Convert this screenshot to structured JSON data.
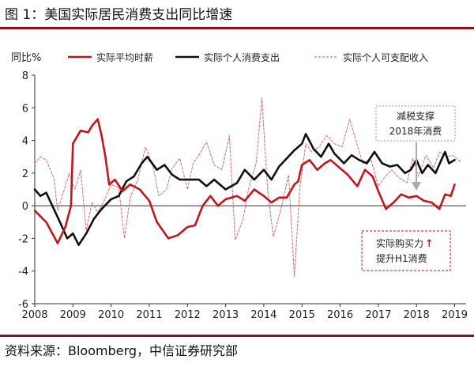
{
  "header": {
    "title": "图 1：美国实际居民消费支出同比增速"
  },
  "footer": {
    "source": "资料来源：Bloomberg，中信证券研究部"
  },
  "chart_data": {
    "type": "line",
    "ylabel": "同比%",
    "ylim": [
      -6,
      8
    ],
    "yticks": [
      -6,
      -4,
      -2,
      0,
      2,
      4,
      6,
      8
    ],
    "xlim": [
      2008,
      2019.3
    ],
    "xticks": [
      "2008",
      "2009",
      "2010",
      "2011",
      "2012",
      "2013",
      "2014",
      "2015",
      "2016",
      "2017",
      "2018",
      "2019"
    ],
    "series": [
      {
        "name": "实际平均时薪",
        "color": "#c0161c",
        "style": "solid",
        "points": [
          [
            2008.0,
            -0.3
          ],
          [
            2008.3,
            -1.0
          ],
          [
            2008.6,
            -2.3
          ],
          [
            2008.8,
            -1.3
          ],
          [
            2008.95,
            0.0
          ],
          [
            2009.0,
            3.8
          ],
          [
            2009.2,
            4.6
          ],
          [
            2009.4,
            4.5
          ],
          [
            2009.5,
            4.9
          ],
          [
            2009.65,
            5.3
          ],
          [
            2009.75,
            4.3
          ],
          [
            2009.85,
            3.0
          ],
          [
            2009.95,
            1.3
          ],
          [
            2010.1,
            1.6
          ],
          [
            2010.3,
            0.9
          ],
          [
            2010.5,
            1.3
          ],
          [
            2010.75,
            1.0
          ],
          [
            2011.0,
            0.3
          ],
          [
            2011.2,
            -1.0
          ],
          [
            2011.5,
            -2.0
          ],
          [
            2011.75,
            -1.8
          ],
          [
            2012.0,
            -1.3
          ],
          [
            2012.2,
            -1.2
          ],
          [
            2012.4,
            0.0
          ],
          [
            2012.6,
            0.6
          ],
          [
            2012.8,
            0.0
          ],
          [
            2013.0,
            0.4
          ],
          [
            2013.3,
            0.6
          ],
          [
            2013.5,
            0.3
          ],
          [
            2013.75,
            1.0
          ],
          [
            2014.0,
            0.6
          ],
          [
            2014.2,
            0.2
          ],
          [
            2014.4,
            0.5
          ],
          [
            2014.6,
            0.5
          ],
          [
            2014.8,
            1.3
          ],
          [
            2014.9,
            1.5
          ],
          [
            2015.0,
            2.5
          ],
          [
            2015.2,
            2.8
          ],
          [
            2015.4,
            2.2
          ],
          [
            2015.6,
            2.6
          ],
          [
            2015.75,
            2.8
          ],
          [
            2016.0,
            2.3
          ],
          [
            2016.2,
            1.9
          ],
          [
            2016.45,
            1.2
          ],
          [
            2016.65,
            2.2
          ],
          [
            2016.85,
            1.8
          ],
          [
            2017.0,
            0.9
          ],
          [
            2017.2,
            -0.2
          ],
          [
            2017.4,
            0.2
          ],
          [
            2017.6,
            0.7
          ],
          [
            2017.8,
            0.5
          ],
          [
            2018.0,
            0.6
          ],
          [
            2018.2,
            0.3
          ],
          [
            2018.4,
            0.2
          ],
          [
            2018.6,
            -0.2
          ],
          [
            2018.75,
            0.7
          ],
          [
            2018.9,
            0.6
          ],
          [
            2019.0,
            1.3
          ]
        ]
      },
      {
        "name": "实际个人消费支出",
        "color": "#111111",
        "style": "solid",
        "points": [
          [
            2008.0,
            1.0
          ],
          [
            2008.15,
            0.6
          ],
          [
            2008.3,
            0.8
          ],
          [
            2008.5,
            -0.2
          ],
          [
            2008.7,
            -1.2
          ],
          [
            2008.85,
            -2.0
          ],
          [
            2009.0,
            -1.7
          ],
          [
            2009.15,
            -2.4
          ],
          [
            2009.35,
            -1.7
          ],
          [
            2009.55,
            -0.8
          ],
          [
            2009.75,
            -0.2
          ],
          [
            2010.0,
            0.4
          ],
          [
            2010.2,
            0.6
          ],
          [
            2010.4,
            1.5
          ],
          [
            2010.6,
            1.8
          ],
          [
            2010.8,
            2.6
          ],
          [
            2010.95,
            3.0
          ],
          [
            2011.2,
            2.2
          ],
          [
            2011.4,
            2.5
          ],
          [
            2011.6,
            1.9
          ],
          [
            2011.8,
            1.6
          ],
          [
            2012.0,
            1.6
          ],
          [
            2012.3,
            1.6
          ],
          [
            2012.5,
            1.2
          ],
          [
            2012.7,
            1.6
          ],
          [
            2013.0,
            1.0
          ],
          [
            2013.3,
            1.4
          ],
          [
            2013.5,
            2.2
          ],
          [
            2013.75,
            1.6
          ],
          [
            2014.0,
            2.2
          ],
          [
            2014.2,
            1.6
          ],
          [
            2014.4,
            2.4
          ],
          [
            2014.6,
            2.9
          ],
          [
            2014.8,
            3.4
          ],
          [
            2015.0,
            3.8
          ],
          [
            2015.1,
            4.4
          ],
          [
            2015.3,
            3.5
          ],
          [
            2015.5,
            3.0
          ],
          [
            2015.7,
            3.8
          ],
          [
            2015.85,
            3.2
          ],
          [
            2016.1,
            2.6
          ],
          [
            2016.3,
            3.1
          ],
          [
            2016.5,
            2.8
          ],
          [
            2016.7,
            2.6
          ],
          [
            2016.9,
            3.3
          ],
          [
            2017.1,
            2.6
          ],
          [
            2017.3,
            2.4
          ],
          [
            2017.5,
            2.5
          ],
          [
            2017.7,
            2.0
          ],
          [
            2017.85,
            2.2
          ],
          [
            2018.0,
            2.8
          ],
          [
            2018.15,
            2.0
          ],
          [
            2018.3,
            2.5
          ],
          [
            2018.5,
            2.0
          ],
          [
            2018.65,
            2.8
          ],
          [
            2018.75,
            3.3
          ],
          [
            2018.85,
            2.6
          ],
          [
            2019.0,
            2.8
          ]
        ]
      },
      {
        "name": "实际个人可支配收入",
        "color": "#d07070",
        "style": "dashed",
        "points": [
          [
            2008.0,
            2.6
          ],
          [
            2008.15,
            3.0
          ],
          [
            2008.3,
            2.8
          ],
          [
            2008.5,
            1.7
          ],
          [
            2008.6,
            -0.3
          ],
          [
            2008.75,
            0.8
          ],
          [
            2008.9,
            2.0
          ],
          [
            2009.05,
            1.0
          ],
          [
            2009.2,
            2.2
          ],
          [
            2009.35,
            -1.5
          ],
          [
            2009.5,
            0.2
          ],
          [
            2009.65,
            -0.4
          ],
          [
            2009.8,
            0.2
          ],
          [
            2010.0,
            1.3
          ],
          [
            2010.2,
            1.1
          ],
          [
            2010.35,
            -2.0
          ],
          [
            2010.5,
            0.5
          ],
          [
            2010.7,
            1.6
          ],
          [
            2010.9,
            3.6
          ],
          [
            2011.1,
            2.4
          ],
          [
            2011.25,
            0.6
          ],
          [
            2011.45,
            1.0
          ],
          [
            2011.6,
            2.3
          ],
          [
            2011.8,
            2.9
          ],
          [
            2012.0,
            1.0
          ],
          [
            2012.15,
            2.6
          ],
          [
            2012.3,
            3.1
          ],
          [
            2012.5,
            3.9
          ],
          [
            2012.7,
            2.5
          ],
          [
            2012.9,
            2.2
          ],
          [
            2013.1,
            4.3
          ],
          [
            2013.25,
            -2.1
          ],
          [
            2013.45,
            -0.9
          ],
          [
            2013.6,
            1.0
          ],
          [
            2013.8,
            2.6
          ],
          [
            2013.95,
            6.6
          ],
          [
            2014.1,
            1.0
          ],
          [
            2014.25,
            -1.9
          ],
          [
            2014.45,
            -0.2
          ],
          [
            2014.65,
            1.9
          ],
          [
            2014.8,
            -4.3
          ],
          [
            2014.95,
            1.2
          ],
          [
            2015.1,
            3.8
          ],
          [
            2015.25,
            3.3
          ],
          [
            2015.45,
            3.6
          ],
          [
            2015.65,
            4.3
          ],
          [
            2015.85,
            3.8
          ],
          [
            2016.05,
            3.6
          ],
          [
            2016.25,
            5.3
          ],
          [
            2016.45,
            3.7
          ],
          [
            2016.6,
            2.6
          ],
          [
            2016.8,
            2.9
          ],
          [
            2017.0,
            1.2
          ],
          [
            2017.15,
            1.7
          ],
          [
            2017.35,
            2.2
          ],
          [
            2017.55,
            1.7
          ],
          [
            2017.75,
            1.4
          ],
          [
            2017.9,
            2.9
          ],
          [
            2018.05,
            1.8
          ],
          [
            2018.25,
            3.1
          ],
          [
            2018.45,
            2.3
          ],
          [
            2018.6,
            3.3
          ],
          [
            2018.8,
            3.0
          ],
          [
            2018.95,
            3.1
          ],
          [
            2019.15,
            2.7
          ]
        ]
      }
    ],
    "annotations": [
      {
        "id": "tax",
        "lines": [
          "减税支撑",
          "2018年消费"
        ]
      },
      {
        "id": "power",
        "line1": "实际购买力",
        "arrow": "↑",
        "line2": "提升H1消费"
      }
    ]
  }
}
